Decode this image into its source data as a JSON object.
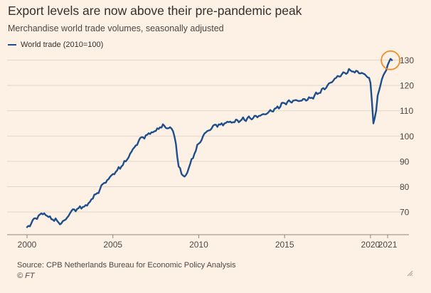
{
  "header": {
    "title": "Export levels are now above their pre-pandemic peak",
    "subtitle": "Merchandise world trade volumes, seasonally adjusted"
  },
  "footer": {
    "source": "Source: CPB Netherlands Bureau for Economic Policy Analysis",
    "credit": "© FT"
  },
  "colors": {
    "background": "#fdf1e5",
    "line": "#1f4e8c",
    "grid": "#e2d6c9",
    "highlight": "#f28c28"
  },
  "chart_data": {
    "type": "line",
    "title": "Export levels are now above their pre-pandemic peak",
    "subtitle": "Merchandise world trade volumes, seasonally adjusted",
    "xlabel": "",
    "ylabel": "",
    "xlim": [
      2000.0,
      2021.33
    ],
    "ylim": [
      63,
      131
    ],
    "grid": true,
    "legend_position": "top-left",
    "x_ticks": [
      2000,
      2005,
      2010,
      2015,
      2020,
      2021
    ],
    "y_ticks": [
      70,
      80,
      90,
      100,
      110,
      120,
      130
    ],
    "y_axis_side": "right",
    "highlight": "circle around latest value",
    "series": [
      {
        "name": "World trade (2010=100)",
        "x": [
          2000.0,
          2000.25,
          2000.5,
          2000.75,
          2001.0,
          2001.25,
          2001.5,
          2001.75,
          2002.0,
          2002.25,
          2002.5,
          2002.75,
          2003.0,
          2003.25,
          2003.5,
          2003.75,
          2004.0,
          2004.25,
          2004.5,
          2004.75,
          2005.0,
          2005.25,
          2005.5,
          2005.75,
          2006.0,
          2006.25,
          2006.5,
          2006.75,
          2007.0,
          2007.25,
          2007.5,
          2007.75,
          2008.0,
          2008.17,
          2008.33,
          2008.5,
          2008.67,
          2008.83,
          2009.0,
          2009.17,
          2009.33,
          2009.5,
          2009.75,
          2010.0,
          2010.25,
          2010.5,
          2010.75,
          2011.0,
          2011.25,
          2011.5,
          2011.75,
          2012.0,
          2012.5,
          2013.0,
          2013.5,
          2014.0,
          2014.5,
          2015.0,
          2015.5,
          2016.0,
          2016.5,
          2017.0,
          2017.5,
          2018.0,
          2018.5,
          2018.83,
          2019.0,
          2019.5,
          2019.92,
          2020.0,
          2020.17,
          2020.33,
          2020.42,
          2020.58,
          2020.75,
          2020.92,
          2021.0,
          2021.17,
          2021.25
        ],
        "values": [
          64,
          65.5,
          67.5,
          69,
          69.5,
          68,
          67,
          66.5,
          65.5,
          67,
          69.5,
          71,
          71.5,
          72,
          72.5,
          75,
          77,
          79,
          81.5,
          83,
          85,
          86.5,
          88,
          90,
          93,
          95.5,
          98,
          99.5,
          100.5,
          101.5,
          102,
          103.5,
          104,
          103,
          103.5,
          102,
          97,
          88,
          85,
          84,
          85.5,
          89,
          93,
          97,
          100,
          102,
          103,
          104.5,
          104.5,
          105,
          105.5,
          105.5,
          106.5,
          107,
          108,
          109,
          111,
          113,
          114,
          114,
          115,
          117,
          120,
          123,
          125,
          126,
          125.5,
          125,
          123,
          121,
          105,
          110,
          116,
          120,
          124,
          126,
          128,
          130.5,
          130
        ]
      }
    ]
  }
}
